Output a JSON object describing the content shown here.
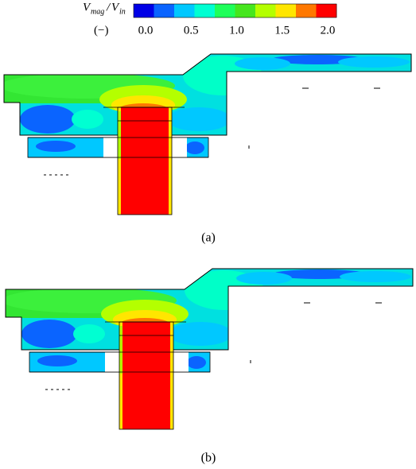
{
  "colorbar": {
    "label": {
      "numerator": "V",
      "numerator_sub": "mag",
      "separator": "/",
      "denominator": "V",
      "denominator_sub": "in"
    },
    "unit": "(−)",
    "tick_labels": [
      "0.0",
      "0.5",
      "1.0",
      "1.5",
      "2.0"
    ],
    "colors": [
      "#0000e6",
      "#0a64ff",
      "#00c8ff",
      "#00ffd2",
      "#1eff5a",
      "#46e61e",
      "#b4ff00",
      "#ffe600",
      "#ff7800",
      "#ff0000"
    ]
  },
  "panels": [
    {
      "caption": "(a)"
    },
    {
      "caption": "(b)"
    }
  ]
}
